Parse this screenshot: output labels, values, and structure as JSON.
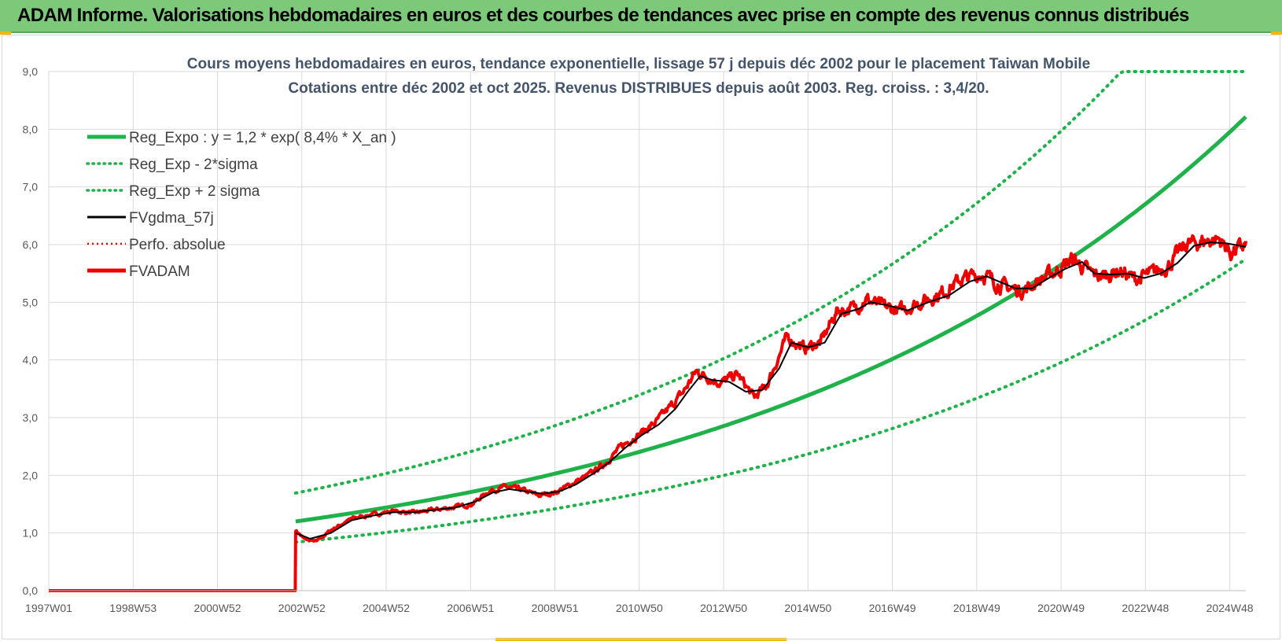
{
  "header": {
    "title": "ADAM Informe. Valorisations hebdomadaires en euros et des courbes de tendances avec prise en compte des revenus connus distribués"
  },
  "colors": {
    "header_bg": "#7dc97a",
    "reg_green": "#1fb14a",
    "fvgdma_black": "#000000",
    "fvadam_red": "#ee0000"
  },
  "chart_data": {
    "type": "line",
    "title_lines": [
      "Cours moyens hebdomadaires en euros, tendance exponentielle, lissage 57 j depuis déc 2002 pour le placement Taiwan Mobile",
      "Cotations entre déc 2002 et oct 2025.  Revenus DISTRIBUES depuis août 2003. Reg. croiss. : 3,4/20."
    ],
    "x_ticks": [
      "1997W01",
      "1998W53",
      "2000W52",
      "2002W52",
      "2004W52",
      "2006W51",
      "2008W51",
      "2010W50",
      "2012W50",
      "2014W50",
      "2016W49",
      "2018W49",
      "2020W49",
      "2022W48",
      "2024W48"
    ],
    "y_ticks": [
      "0,0",
      "1,0",
      "2,0",
      "3,0",
      "4,0",
      "5,0",
      "6,0",
      "7,0",
      "8,0",
      "9,0"
    ],
    "ylim": [
      0,
      9
    ],
    "x_range_years": [
      1997.0,
      2025.85
    ],
    "grid": true,
    "legend_position": "top-left",
    "legend": [
      {
        "label": "Reg_Expo : y = 1,2 * exp( 8,4% *  X_an )",
        "style": "solid-thick",
        "color": "#1fb14a"
      },
      {
        "label": "Reg_Exp - 2*sigma",
        "style": "dotted",
        "color": "#1fb14a"
      },
      {
        "label": "Reg_Exp + 2 sigma",
        "style": "dotted",
        "color": "#1fb14a"
      },
      {
        "label": "FVgdma_57j",
        "style": "solid",
        "color": "#000000"
      },
      {
        "label": "Perfo. absolue",
        "style": "dotted",
        "color": "#ee0000"
      },
      {
        "label": "FVADAM",
        "style": "solid-thick",
        "color": "#ee0000"
      }
    ],
    "regression": {
      "start_year": 2002.95,
      "end_year": 2025.85,
      "coefficient": 1.2,
      "rate": 0.084,
      "lower_factor": 0.7,
      "upper_factor": 1.41,
      "cap": 9.0
    },
    "series": [
      {
        "name": "FVADAM",
        "x": [
          1997.0,
          2002.94,
          2002.95,
          2003.15,
          2003.45,
          2003.8,
          2004.3,
          2004.8,
          2005.3,
          2005.8,
          2006.3,
          2006.8,
          2007.2,
          2007.6,
          2008.0,
          2008.4,
          2008.8,
          2009.2,
          2009.6,
          2010.0,
          2010.4,
          2010.8,
          2011.2,
          2011.6,
          2012.0,
          2012.3,
          2012.6,
          2012.9,
          2013.2,
          2013.6,
          2014.0,
          2014.3,
          2014.5,
          2014.8,
          2015.2,
          2015.6,
          2016.0,
          2016.4,
          2016.7,
          2017.0,
          2017.5,
          2018.0,
          2018.5,
          2019.0,
          2019.5,
          2019.8,
          2020.1,
          2020.5,
          2020.9,
          2021.3,
          2021.7,
          2022.1,
          2022.4,
          2022.8,
          2023.2,
          2023.6,
          2024.0,
          2024.4,
          2024.8,
          2025.2,
          2025.5,
          2025.85
        ],
        "values": [
          0.0,
          0.0,
          1.05,
          0.9,
          0.85,
          1.05,
          1.25,
          1.32,
          1.38,
          1.35,
          1.4,
          1.45,
          1.5,
          1.72,
          1.8,
          1.75,
          1.65,
          1.7,
          1.85,
          2.0,
          2.2,
          2.5,
          2.7,
          2.9,
          3.2,
          3.45,
          3.8,
          3.7,
          3.6,
          3.75,
          3.35,
          3.55,
          3.9,
          4.4,
          4.2,
          4.3,
          4.85,
          4.9,
          5.05,
          4.95,
          4.85,
          5.0,
          5.15,
          5.4,
          5.5,
          5.35,
          5.25,
          5.2,
          5.4,
          5.55,
          5.75,
          5.5,
          5.45,
          5.55,
          5.4,
          5.5,
          5.65,
          6.0,
          6.05,
          6.1,
          5.85,
          6.0
        ]
      },
      {
        "name": "FVgdma_57j",
        "x": [
          2002.95,
          2003.3,
          2003.8,
          2004.3,
          2004.8,
          2005.3,
          2005.8,
          2006.3,
          2006.8,
          2007.3,
          2007.7,
          2008.1,
          2008.5,
          2008.9,
          2009.3,
          2009.7,
          2010.1,
          2010.5,
          2010.9,
          2011.3,
          2011.7,
          2012.1,
          2012.4,
          2012.7,
          2013.0,
          2013.4,
          2013.8,
          2014.2,
          2014.6,
          2014.9,
          2015.3,
          2015.7,
          2016.1,
          2016.5,
          2016.8,
          2017.2,
          2017.7,
          2018.2,
          2018.7,
          2019.2,
          2019.6,
          2019.9,
          2020.3,
          2020.7,
          2021.1,
          2021.5,
          2021.9,
          2022.2,
          2022.6,
          2023.0,
          2023.4,
          2023.8,
          2024.2,
          2024.6,
          2025.0,
          2025.4,
          2025.85
        ],
        "values": [
          1.0,
          0.9,
          1.0,
          1.22,
          1.3,
          1.36,
          1.36,
          1.4,
          1.44,
          1.55,
          1.7,
          1.76,
          1.72,
          1.68,
          1.72,
          1.84,
          2.02,
          2.22,
          2.48,
          2.7,
          2.88,
          3.15,
          3.45,
          3.72,
          3.65,
          3.62,
          3.45,
          3.48,
          3.85,
          4.3,
          4.22,
          4.3,
          4.8,
          4.88,
          5.0,
          4.95,
          4.86,
          5.0,
          5.12,
          5.36,
          5.45,
          5.36,
          5.24,
          5.24,
          5.42,
          5.58,
          5.7,
          5.5,
          5.48,
          5.5,
          5.42,
          5.5,
          5.68,
          5.98,
          6.04,
          6.02,
          5.96
        ]
      }
    ]
  }
}
